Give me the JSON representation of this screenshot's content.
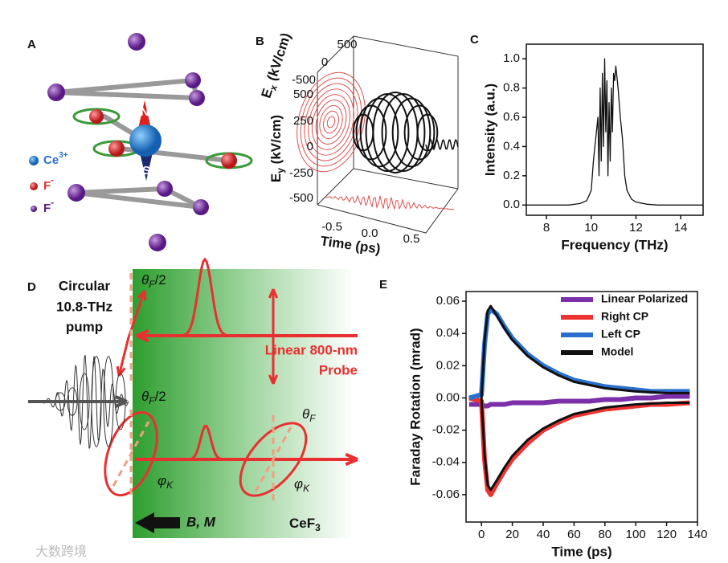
{
  "panels": {
    "A": {
      "letter": "A",
      "ce": {
        "symbol": "Ce",
        "charge": "3+"
      },
      "f1": {
        "symbol": "F",
        "charge": "-"
      },
      "f2": {
        "symbol": "F",
        "charge": "-"
      },
      "north": "N",
      "south": "S"
    },
    "B": {
      "letter": "B",
      "ex_label": {
        "main": "E",
        "sub": "x",
        "unit": " (kV/cm)"
      },
      "ex_ticks": [
        "500",
        "0",
        "-500"
      ],
      "ey_label": {
        "main": "E",
        "sub": "y",
        "unit": " (kV/cm)"
      },
      "ey_ticks": [
        "500",
        "250",
        "0",
        "-250",
        "-500"
      ],
      "time_label": "Time (ps)",
      "time_ticks": [
        "-0.5",
        "0.0",
        "0.5"
      ]
    },
    "D": {
      "letter": "D",
      "pump": [
        "Circular",
        "10.8-THz",
        "pump"
      ],
      "theta_half_1": {
        "main": "θ",
        "sub": "F",
        "rest": "/2"
      },
      "theta_half_2": {
        "main": "θ",
        "sub": "F",
        "rest": "/2"
      },
      "theta": {
        "main": "θ",
        "sub": "F"
      },
      "phi_1": {
        "main": "φ",
        "sub": "K"
      },
      "phi_2": {
        "main": "φ",
        "sub": "K"
      },
      "probe": [
        "Linear 800-nm",
        "Probe"
      ],
      "field": "B, M",
      "crystal": {
        "main": "CeF",
        "sub": "3"
      }
    },
    "watermark": "大数跨境"
  },
  "chart_data": [
    {
      "type": "line",
      "letter": "C",
      "xlabel": "Frequency (THz)",
      "ylabel": "Intensity (a.u.)",
      "xlim": [
        7.1,
        15
      ],
      "ylim": [
        -0.07,
        1.1
      ],
      "xticks": [
        8,
        10,
        12,
        14
      ],
      "yticks": [
        {
          "value": 0,
          "label": "0.0"
        },
        {
          "value": 0.2,
          "label": "0.2"
        },
        {
          "value": 0.4,
          "label": "0.4"
        },
        {
          "value": 0.6,
          "label": "0.6"
        },
        {
          "value": 0.8,
          "label": "0.8"
        },
        {
          "value": 1,
          "label": "1.0"
        }
      ],
      "x": [
        7.1,
        8,
        9,
        9.5,
        9.8,
        10.0,
        10.1,
        10.2,
        10.3,
        10.35,
        10.4,
        10.45,
        10.5,
        10.55,
        10.6,
        10.65,
        10.7,
        10.75,
        10.8,
        10.85,
        10.9,
        10.95,
        11.0,
        11.05,
        11.1,
        11.2,
        11.3,
        11.4,
        11.5,
        11.6,
        11.8,
        12.0,
        12.5,
        13,
        15
      ],
      "series": [
        {
          "color": "#111111",
          "values": [
            0,
            0,
            0,
            0.01,
            0.03,
            0.1,
            0.3,
            0.45,
            0.6,
            0.2,
            0.8,
            0.3,
            0.9,
            0.4,
            1.0,
            0.5,
            0.85,
            0.2,
            0.7,
            0.3,
            0.8,
            0.5,
            0.9,
            0.85,
            0.95,
            0.8,
            0.6,
            0.45,
            0.2,
            0.1,
            0.04,
            0.02,
            0.005,
            0,
            0
          ]
        }
      ]
    },
    {
      "type": "line",
      "letter": "E",
      "xlabel": "Time (ps)",
      "ylabel": "Faraday Rotation (mrad)",
      "xlim": [
        -10,
        140
      ],
      "ylim": [
        -0.077,
        0.066
      ],
      "xticks": [
        0,
        20,
        40,
        60,
        80,
        100,
        120,
        140
      ],
      "yticks": [
        0.06,
        0.04,
        0.02,
        {
          "value": 0,
          "label": "0.00"
        },
        -0.02,
        -0.04,
        -0.06
      ],
      "legend": "upper right",
      "x": [
        -8,
        0,
        2,
        4,
        6,
        10,
        15,
        20,
        30,
        40,
        50,
        60,
        70,
        80,
        90,
        100,
        110,
        120,
        135
      ],
      "series": [
        {
          "name": "Linear Polarized",
          "color": "#7b2fa8",
          "values": [
            -0.004,
            -0.004,
            -0.005,
            -0.005,
            -0.004,
            -0.004,
            -0.004,
            -0.003,
            -0.003,
            -0.003,
            -0.002,
            -0.002,
            -0.002,
            -0.001,
            -0.001,
            0,
            0,
            0.001,
            0.001
          ]
        },
        {
          "name": "Right CP",
          "color": "#ee3333",
          "values": [
            0,
            -0.002,
            -0.038,
            -0.057,
            -0.06,
            -0.053,
            -0.045,
            -0.038,
            -0.028,
            -0.02,
            -0.015,
            -0.011,
            -0.009,
            -0.007,
            -0.006,
            -0.005,
            -0.004,
            -0.004,
            -0.003
          ]
        },
        {
          "name": "Left CP",
          "color": "#2a6fd0",
          "values": [
            0,
            0.002,
            0.033,
            0.052,
            0.055,
            0.052,
            0.044,
            0.037,
            0.027,
            0.02,
            0.015,
            0.011,
            0.009,
            0.007,
            0.006,
            0.005,
            0.004,
            0.004,
            0.004
          ]
        },
        {
          "name": "Model",
          "color": "#111111",
          "values": [
            null,
            0,
            0.035,
            0.054,
            0.057,
            0.051,
            0.043,
            0.036,
            0.026,
            0.019,
            0.014,
            0.01,
            0.008,
            0.006,
            0.005,
            0.004,
            0.0035,
            0.003,
            0.003
          ]
        },
        {
          "name": "Model",
          "color": "#111111",
          "values": [
            null,
            0,
            -0.035,
            -0.054,
            -0.057,
            -0.051,
            -0.043,
            -0.036,
            -0.026,
            -0.019,
            -0.014,
            -0.01,
            -0.008,
            -0.006,
            -0.005,
            -0.004,
            -0.0035,
            -0.003,
            -0.003
          ]
        }
      ]
    }
  ]
}
